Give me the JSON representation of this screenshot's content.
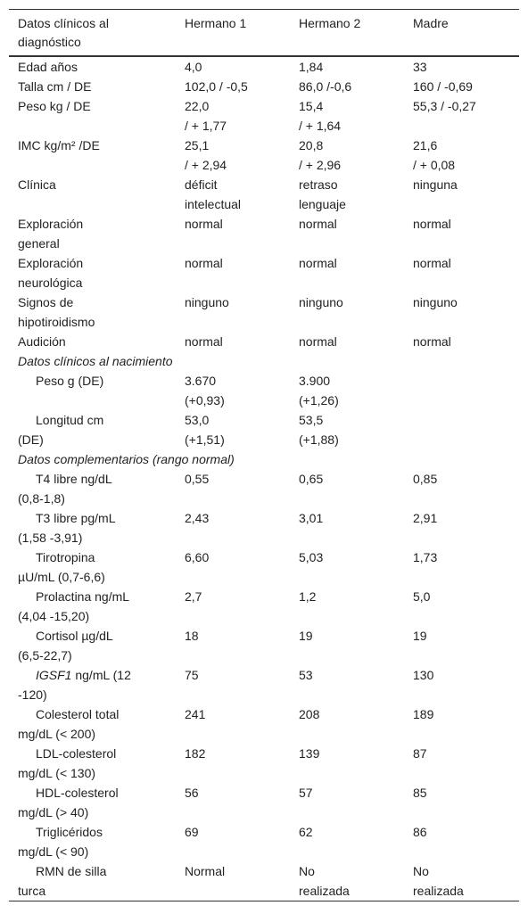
{
  "header": [
    "Datos clínicos al\ndiagnóstico",
    "Hermano 1",
    "Hermano 2",
    "Madre"
  ],
  "rows": [
    {
      "label": "Edad años",
      "values": [
        "4,0",
        "1,84",
        "33"
      ]
    },
    {
      "label": "Talla cm / DE",
      "values": [
        "102,0 / -0,5",
        "86,0 /-0,6",
        "160 / -0,69"
      ]
    },
    {
      "label": "Peso kg / DE",
      "values": [
        "22,0\n/ + 1,77",
        "15,4\n/ + 1,64",
        "55,3 / -0,27"
      ]
    },
    {
      "label": "IMC kg/m² /DE",
      "values": [
        "25,1\n/ + 2,94",
        "20,8\n/ + 2,96",
        "21,6\n/ + 0,08"
      ]
    },
    {
      "label": "Clínica",
      "values": [
        "déficit\nintelectual",
        "retraso\nlenguaje",
        "ninguna"
      ]
    },
    {
      "label": "Exploración\ngeneral",
      "values": [
        "normal",
        "normal",
        "normal"
      ]
    },
    {
      "label": "Exploración\nneurológica",
      "values": [
        "normal",
        "normal",
        "normal"
      ]
    },
    {
      "label": "Signos de\nhipotiroidismo",
      "values": [
        "ninguno",
        "ninguno",
        "ninguno"
      ]
    },
    {
      "label": "Audición",
      "values": [
        "normal",
        "normal",
        "normal"
      ]
    },
    {
      "section": "Datos clínicos al nacimiento"
    },
    {
      "label": "Peso g (DE)",
      "values": [
        "3.670\n(+0,93)",
        "3.900\n(+1,26)",
        ""
      ]
    },
    {
      "label": "Longitud cm\n(DE)",
      "values": [
        "53,0\n(+1,51)",
        "53,5\n(+1,88)",
        ""
      ]
    },
    {
      "section": "Datos complementarios (rango normal)"
    },
    {
      "label": "T4 libre ng/dL\n(0,8-1,8)",
      "values": [
        "0,55",
        "0,65",
        "0,85"
      ]
    },
    {
      "label": "T3 libre pg/mL\n(1,58 -3,91)",
      "values": [
        "2,43",
        "3,01",
        "2,91"
      ]
    },
    {
      "label": "Tirotropina\nµU/mL (0,7-6,6)",
      "values": [
        "6,60",
        "5,03",
        "1,73"
      ]
    },
    {
      "label": "Prolactina ng/mL\n(4,04 -15,20)",
      "values": [
        "2,7",
        "1,2",
        "5,0"
      ]
    },
    {
      "label": "Cortisol µg/dL\n(6,5-22,7)",
      "values": [
        "18",
        "19",
        "19"
      ]
    },
    {
      "label_italic": "IGSF1",
      "label": " ng/mL (12\n-120)",
      "values": [
        "75",
        "53",
        "130"
      ]
    },
    {
      "label": "Colesterol total\nmg/dL (< 200)",
      "values": [
        "241",
        "208",
        "189"
      ]
    },
    {
      "label": "LDL-colesterol\nmg/dL (< 130)",
      "values": [
        "182",
        "139",
        "87"
      ]
    },
    {
      "label": "HDL-colesterol\nmg/dL (> 40)",
      "values": [
        "56",
        "57",
        "85"
      ]
    },
    {
      "label": "Triglicéridos\nmg/dL (< 90)",
      "values": [
        "69",
        "62",
        "86"
      ]
    },
    {
      "label": "RMN de silla\nturca",
      "values": [
        "Normal",
        "No\nrealizada",
        "No\nrealizada"
      ]
    }
  ]
}
